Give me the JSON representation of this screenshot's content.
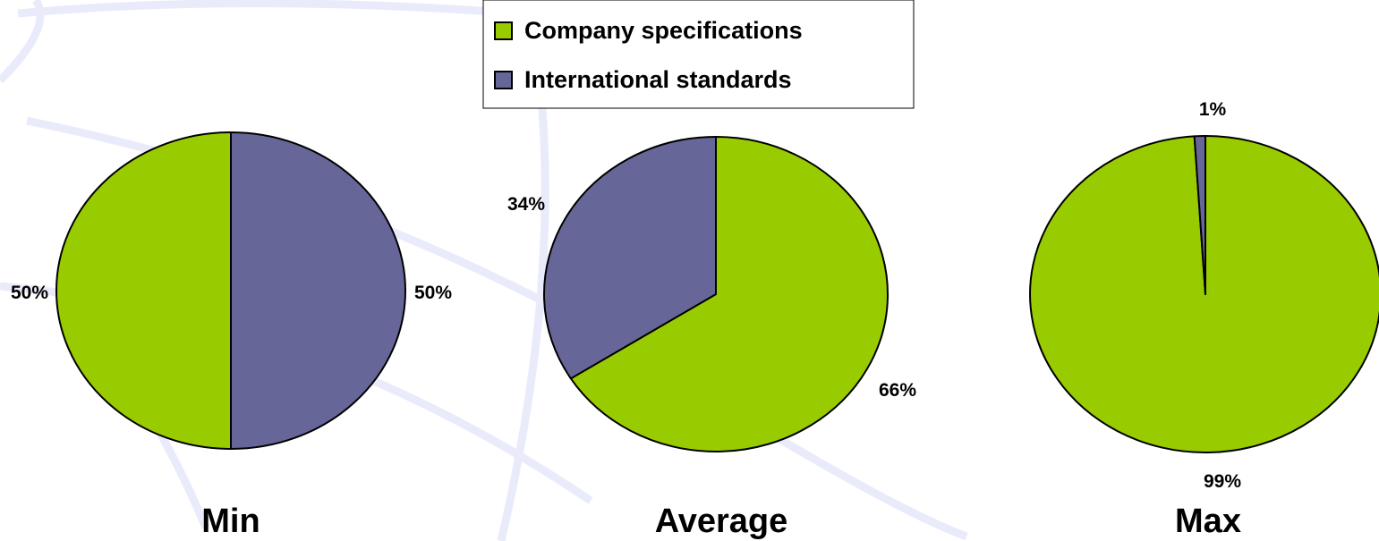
{
  "chart_data": {
    "type": "pie",
    "legend": {
      "placement": "top-center",
      "entries": [
        {
          "name": "Company specifications",
          "color": "#99cc00"
        },
        {
          "name": "International standards",
          "color": "#666699"
        }
      ]
    },
    "charts": [
      {
        "title": "Min",
        "slices": [
          {
            "series": "Company specifications",
            "value": 50,
            "label": "50%"
          },
          {
            "series": "International standards",
            "value": 50,
            "label": "50%"
          }
        ]
      },
      {
        "title": "Average",
        "slices": [
          {
            "series": "Company specifications",
            "value": 66,
            "label": "66%"
          },
          {
            "series": "International standards",
            "value": 34,
            "label": "34%"
          }
        ]
      },
      {
        "title": "Max",
        "slices": [
          {
            "series": "Company specifications",
            "value": 99,
            "label": "99%"
          },
          {
            "series": "International standards",
            "value": 1,
            "label": "1%"
          }
        ]
      }
    ]
  }
}
